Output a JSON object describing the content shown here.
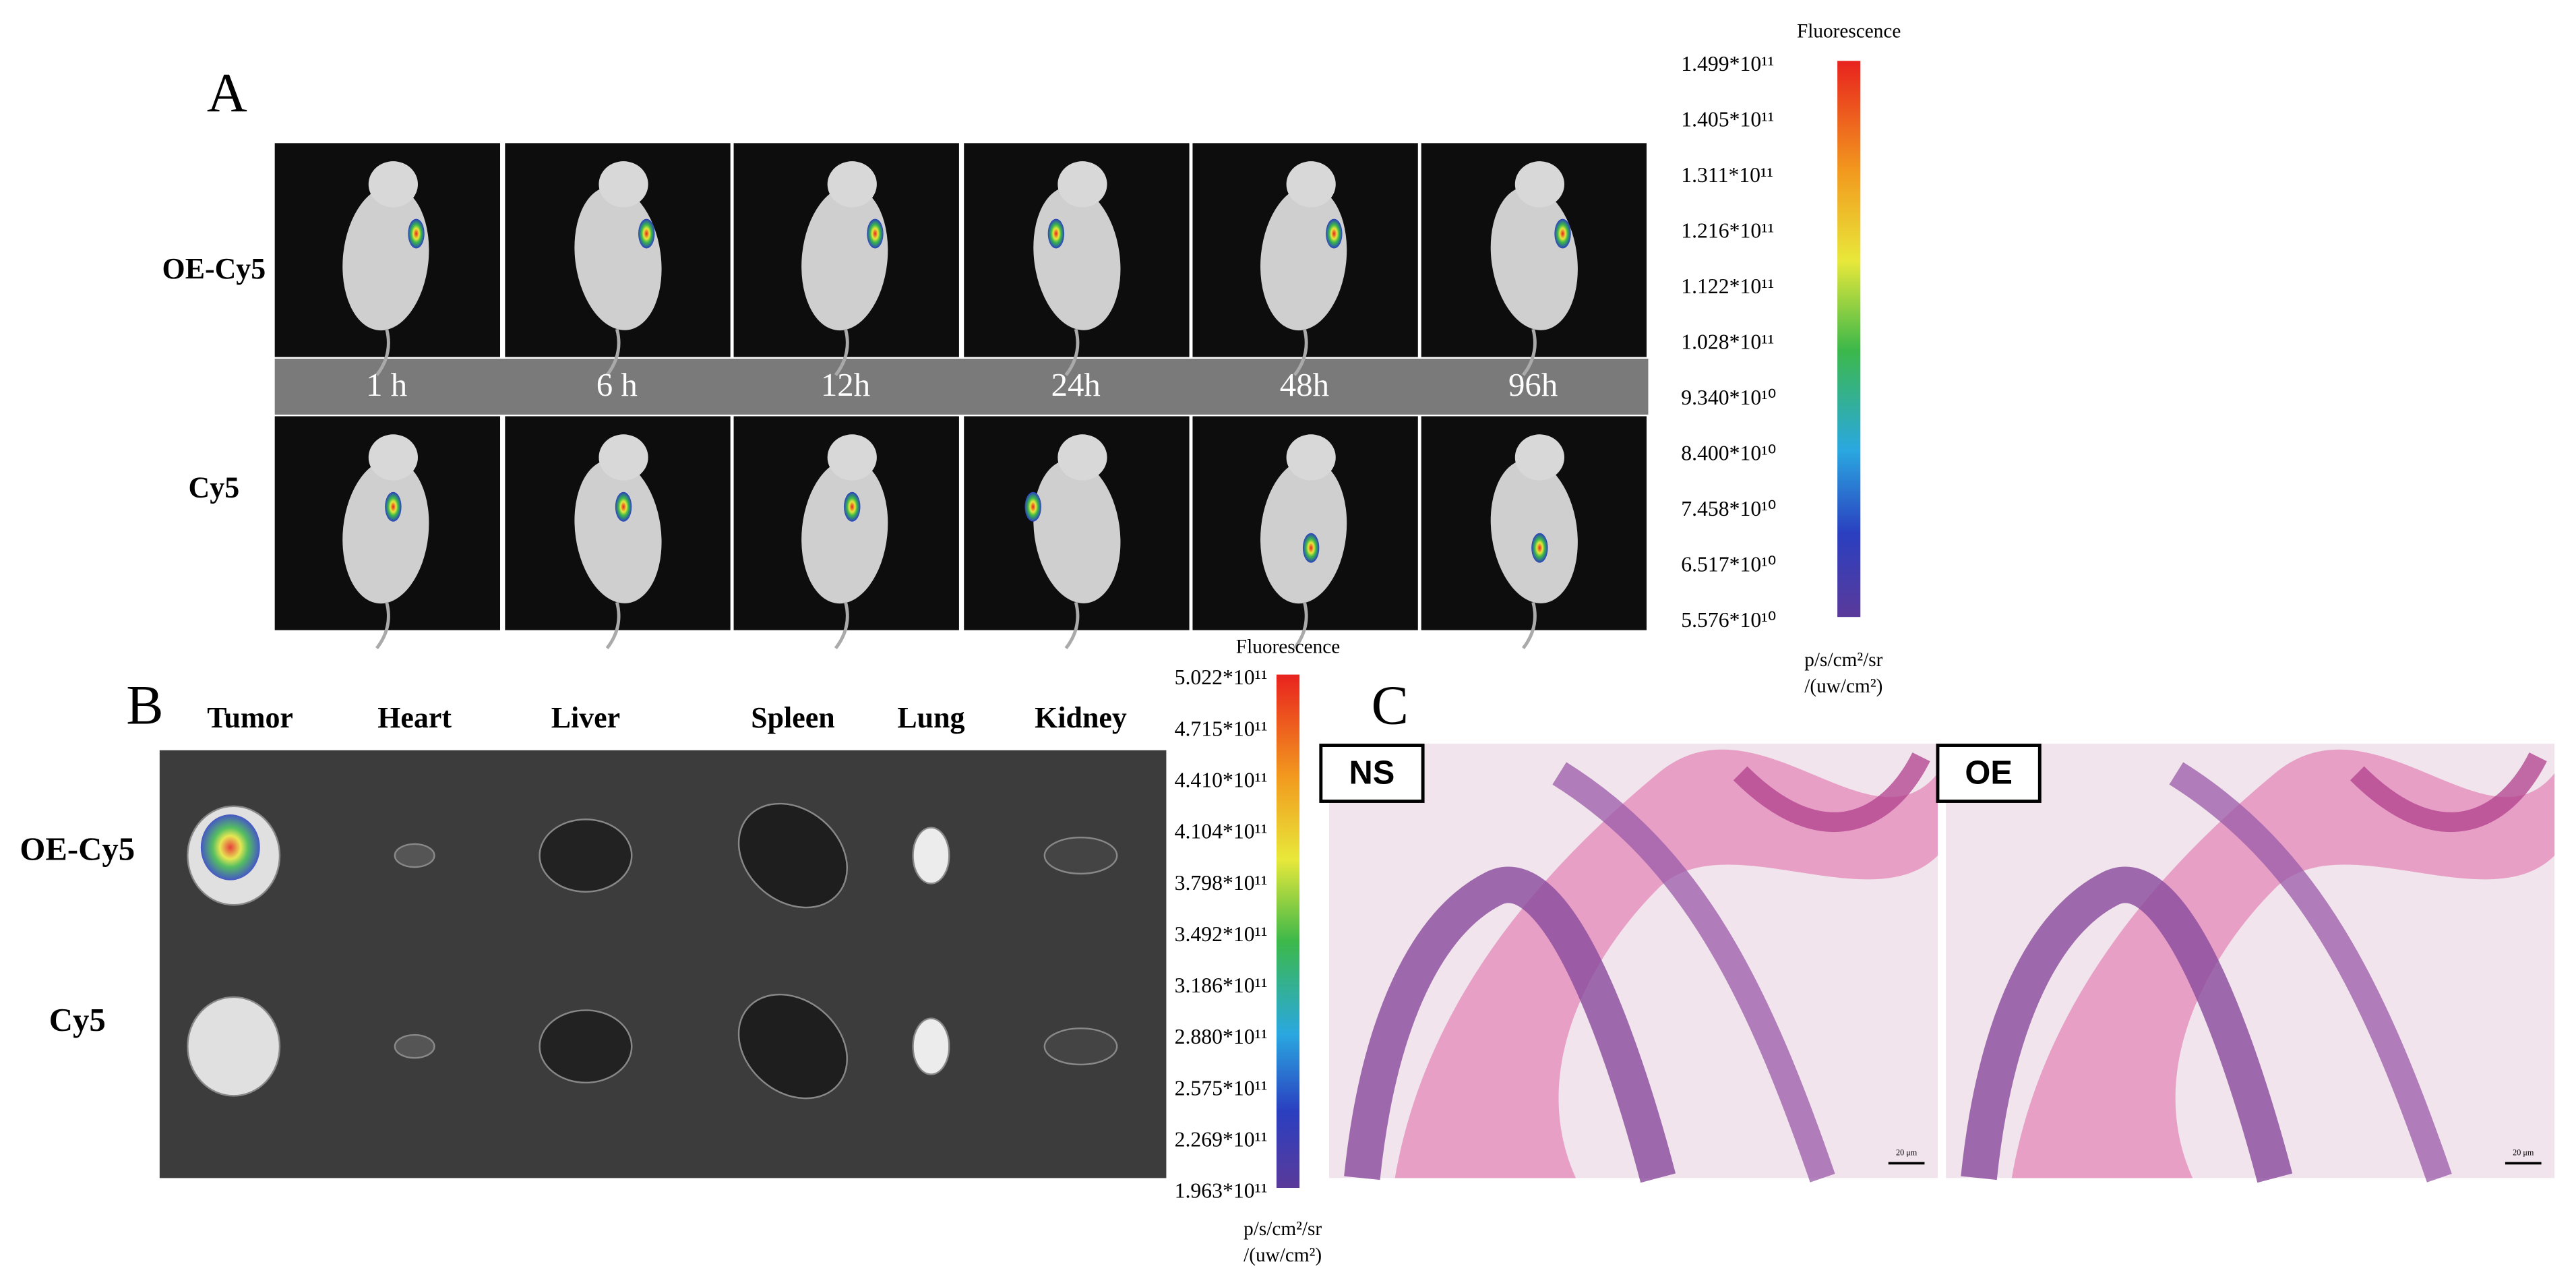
{
  "panels": {
    "A": {
      "label": "A",
      "rows": [
        "OE-Cy5",
        "Cy5"
      ],
      "times": [
        "1 h",
        "6 h",
        "12h",
        "24h",
        "48h",
        "96h"
      ],
      "colorbar": {
        "title": "Fluorescence",
        "ticks": [
          "1.499*10¹¹",
          "1.405*10¹¹",
          "1.311*10¹¹",
          "1.216*10¹¹",
          "1.122*10¹¹",
          "1.028*10¹¹",
          "9.340*10¹⁰",
          "8.400*10¹⁰",
          "7.458*10¹⁰",
          "6.517*10¹⁰",
          "5.576*10¹⁰"
        ],
        "units": [
          "p/s/cm²/sr",
          "/(uw/cm²)"
        ]
      }
    },
    "B": {
      "label": "B",
      "rows": [
        "OE-Cy5",
        "Cy5"
      ],
      "organs": [
        "Tumor",
        "Heart",
        "Liver",
        "Spleen",
        "Lung",
        "Kidney"
      ],
      "colorbar": {
        "title": "Fluorescence",
        "ticks": [
          "5.022*10¹¹",
          "4.715*10¹¹",
          "4.410*10¹¹",
          "4.104*10¹¹",
          "3.798*10¹¹",
          "3.492*10¹¹",
          "3.186*10¹¹",
          "2.880*10¹¹",
          "2.575*10¹¹",
          "2.269*10¹¹",
          "1.963*10¹¹"
        ],
        "units": [
          "p/s/cm²/sr",
          "/(uw/cm²)"
        ]
      }
    },
    "C": {
      "label": "C",
      "images": [
        "NS",
        "OE"
      ],
      "scale_bar": "20 μm"
    }
  }
}
